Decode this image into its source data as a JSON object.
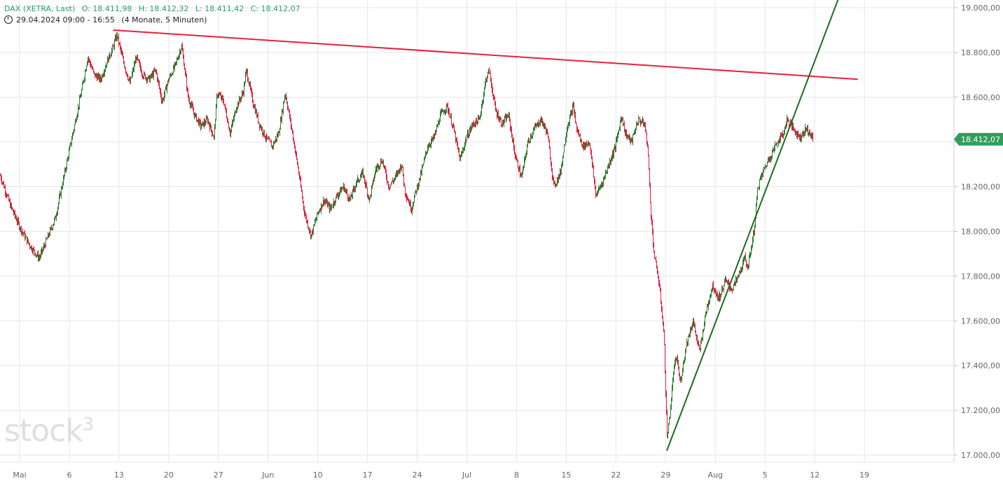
{
  "header": {
    "title": "DAX (XETRA, Last)",
    "open": "O: 18.411,98",
    "high": "H: 18.412,32",
    "low": "L: 18.411,42",
    "close": "C: 18.412,07",
    "range": "29.04.2024 09:00 - 16:55",
    "period": "(4 Monate, 5 Minuten)"
  },
  "watermark": {
    "text": "stock",
    "sup": "3"
  },
  "chart_data": {
    "type": "line",
    "ylim": [
      16920,
      19040
    ],
    "y_ticks": [
      17000,
      17200,
      17400,
      17600,
      17800,
      18000,
      18200,
      18400,
      18600,
      18800,
      19000
    ],
    "y_tick_labels": [
      "17.000,00",
      "17.200,00",
      "17.400,00",
      "17.600,00",
      "17.800,00",
      "18.000,00",
      "18.200,00",
      "18.400,00",
      "18.600,00",
      "18.800,00",
      "19.000,00"
    ],
    "x_tick_labels": [
      "Mai",
      "6",
      "13",
      "20",
      "27",
      "Jun",
      "10",
      "17",
      "24",
      "Jul",
      "8",
      "15",
      "22",
      "29",
      "Aug",
      "5",
      "12",
      "19"
    ],
    "last_price_label": "18.412,07",
    "last_price": 18412.07,
    "series": [
      {
        "values": [
          [
            0,
            18250
          ],
          [
            3,
            18120
          ],
          [
            6,
            18020
          ],
          [
            9,
            17940
          ],
          [
            12,
            17880
          ],
          [
            14,
            17950
          ],
          [
            17,
            18060
          ],
          [
            19,
            18200
          ],
          [
            21,
            18340
          ],
          [
            23,
            18480
          ],
          [
            25,
            18620
          ],
          [
            27,
            18780
          ],
          [
            29,
            18700
          ],
          [
            31,
            18680
          ],
          [
            33,
            18760
          ],
          [
            35,
            18830
          ],
          [
            36,
            18880
          ],
          [
            38,
            18760
          ],
          [
            40,
            18660
          ],
          [
            42,
            18780
          ],
          [
            44,
            18700
          ],
          [
            46,
            18680
          ],
          [
            48,
            18720
          ],
          [
            50,
            18580
          ],
          [
            52,
            18680
          ],
          [
            54,
            18740
          ],
          [
            56,
            18830
          ],
          [
            57,
            18720
          ],
          [
            58,
            18600
          ],
          [
            60,
            18520
          ],
          [
            62,
            18470
          ],
          [
            64,
            18500
          ],
          [
            66,
            18420
          ],
          [
            67,
            18620
          ],
          [
            69,
            18580
          ],
          [
            71,
            18440
          ],
          [
            73,
            18560
          ],
          [
            75,
            18620
          ],
          [
            76,
            18720
          ],
          [
            78,
            18580
          ],
          [
            80,
            18480
          ],
          [
            82,
            18420
          ],
          [
            84,
            18380
          ],
          [
            86,
            18440
          ],
          [
            88,
            18620
          ],
          [
            90,
            18460
          ],
          [
            92,
            18280
          ],
          [
            94,
            18080
          ],
          [
            96,
            17980
          ],
          [
            98,
            18080
          ],
          [
            100,
            18140
          ],
          [
            102,
            18100
          ],
          [
            104,
            18160
          ],
          [
            106,
            18200
          ],
          [
            108,
            18140
          ],
          [
            110,
            18220
          ],
          [
            112,
            18260
          ],
          [
            114,
            18140
          ],
          [
            116,
            18280
          ],
          [
            118,
            18320
          ],
          [
            120,
            18200
          ],
          [
            122,
            18240
          ],
          [
            124,
            18300
          ],
          [
            125,
            18180
          ],
          [
            127,
            18100
          ],
          [
            128,
            18160
          ],
          [
            130,
            18260
          ],
          [
            132,
            18380
          ],
          [
            134,
            18420
          ],
          [
            136,
            18520
          ],
          [
            138,
            18560
          ],
          [
            140,
            18460
          ],
          [
            142,
            18320
          ],
          [
            144,
            18420
          ],
          [
            146,
            18480
          ],
          [
            148,
            18500
          ],
          [
            150,
            18680
          ],
          [
            151,
            18720
          ],
          [
            153,
            18540
          ],
          [
            155,
            18480
          ],
          [
            157,
            18520
          ],
          [
            159,
            18340
          ],
          [
            161,
            18240
          ],
          [
            163,
            18400
          ],
          [
            165,
            18460
          ],
          [
            167,
            18500
          ],
          [
            169,
            18440
          ],
          [
            171,
            18200
          ],
          [
            173,
            18260
          ],
          [
            175,
            18460
          ],
          [
            177,
            18560
          ],
          [
            178,
            18460
          ],
          [
            180,
            18380
          ],
          [
            182,
            18400
          ],
          [
            184,
            18160
          ],
          [
            186,
            18220
          ],
          [
            188,
            18300
          ],
          [
            190,
            18380
          ],
          [
            192,
            18520
          ],
          [
            193,
            18440
          ],
          [
            195,
            18400
          ],
          [
            197,
            18500
          ],
          [
            199,
            18480
          ],
          [
            200,
            18380
          ],
          [
            201,
            18080
          ],
          [
            202,
            17890
          ],
          [
            203,
            17820
          ],
          [
            204,
            17700
          ],
          [
            205,
            17540
          ],
          [
            206,
            17080
          ],
          [
            207,
            17200
          ],
          [
            208,
            17380
          ],
          [
            209,
            17440
          ],
          [
            210,
            17320
          ],
          [
            212,
            17500
          ],
          [
            214,
            17600
          ],
          [
            216,
            17460
          ],
          [
            218,
            17640
          ],
          [
            220,
            17760
          ],
          [
            222,
            17700
          ],
          [
            224,
            17780
          ],
          [
            226,
            17740
          ],
          [
            228,
            17800
          ],
          [
            230,
            17880
          ],
          [
            231,
            17840
          ],
          [
            233,
            18020
          ],
          [
            234,
            18200
          ],
          [
            236,
            18280
          ],
          [
            238,
            18340
          ],
          [
            240,
            18400
          ],
          [
            242,
            18440
          ],
          [
            243,
            18500
          ],
          [
            245,
            18460
          ],
          [
            247,
            18420
          ],
          [
            249,
            18460
          ],
          [
            250,
            18440
          ],
          [
            251,
            18412
          ]
        ]
      }
    ],
    "trendlines": [
      {
        "color": "#e8203c",
        "from": [
          35,
          18900
        ],
        "to": [
          265,
          18680
        ]
      },
      {
        "color": "#1e6b1e",
        "from": [
          206,
          17020
        ],
        "to": [
          259,
          19040
        ]
      }
    ]
  }
}
